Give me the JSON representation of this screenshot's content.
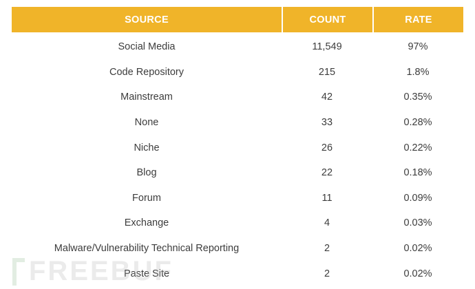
{
  "table": {
    "headers": {
      "source": "SOURCE",
      "count": "COUNT",
      "rate": "RATE"
    },
    "rows": [
      {
        "source": "Social Media",
        "count": "11,549",
        "rate": "97%"
      },
      {
        "source": "Code Repository",
        "count": "215",
        "rate": "1.8%"
      },
      {
        "source": "Mainstream",
        "count": "42",
        "rate": "0.35%"
      },
      {
        "source": "None",
        "count": "33",
        "rate": "0.28%"
      },
      {
        "source": "Niche",
        "count": "26",
        "rate": "0.22%"
      },
      {
        "source": "Blog",
        "count": "22",
        "rate": "0.18%"
      },
      {
        "source": "Forum",
        "count": "11",
        "rate": "0.09%"
      },
      {
        "source": "Exchange",
        "count": "4",
        "rate": "0.03%"
      },
      {
        "source": "Malware/Vulnerability Technical Reporting",
        "count": "2",
        "rate": "0.02%"
      },
      {
        "source": "Paste Site",
        "count": "2",
        "rate": "0.02%"
      }
    ]
  },
  "watermark": {
    "text": "FREEBUF"
  },
  "colors": {
    "header_bg": "#f0b429",
    "header_text": "#ffffff",
    "body_text": "#3c3c3c"
  }
}
